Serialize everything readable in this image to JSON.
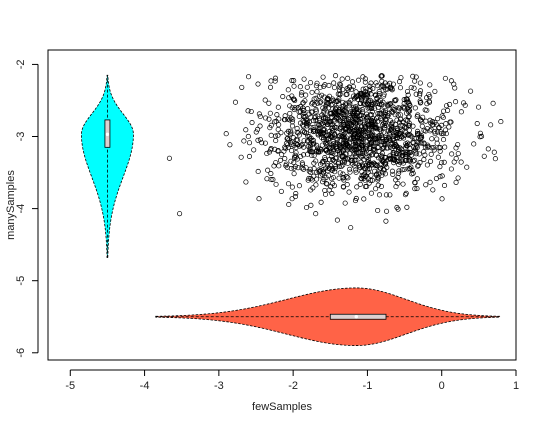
{
  "chart_data": {
    "type": "scatter",
    "title": "",
    "xlabel": "fewSamples",
    "ylabel": "manySamples",
    "xlim": [
      -5.3,
      1.0
    ],
    "ylim": [
      -6.1,
      -1.8
    ],
    "x_ticks": [
      -5,
      -4,
      -3,
      -2,
      -1,
      0,
      1
    ],
    "x_tick_labels": [
      "-5",
      "-4",
      "-3",
      "-2",
      "-1",
      "0",
      "1"
    ],
    "y_ticks": [
      -2,
      -3,
      -4,
      -5,
      -6
    ],
    "y_tick_labels": [
      "-2",
      "-3",
      "-4",
      "-5",
      "-6"
    ],
    "grid": false,
    "scatter": {
      "n_points": 1500,
      "center_x": -1.1,
      "center_y": -2.95,
      "sd_x": 0.62,
      "sd_y": 0.4,
      "x_range": [
        -4.0,
        0.8
      ],
      "y_range": [
        -4.7,
        -2.15
      ],
      "marker": "open-circle",
      "color": "#000000"
    },
    "violins": [
      {
        "name": "",
        "orientation": "vertical",
        "position_x": -4.5,
        "min": -4.68,
        "q1": -3.15,
        "median": -2.97,
        "q3": -2.77,
        "max": -2.15,
        "half_width_x": 0.35,
        "fill": "#00FFFF"
      },
      {
        "name": "",
        "orientation": "horizontal",
        "position_y": -5.5,
        "min": -3.85,
        "q1": -1.5,
        "median": -1.15,
        "q3": -0.75,
        "max": 0.78,
        "half_width_y": 0.4,
        "fill": "#FF6347"
      }
    ]
  }
}
